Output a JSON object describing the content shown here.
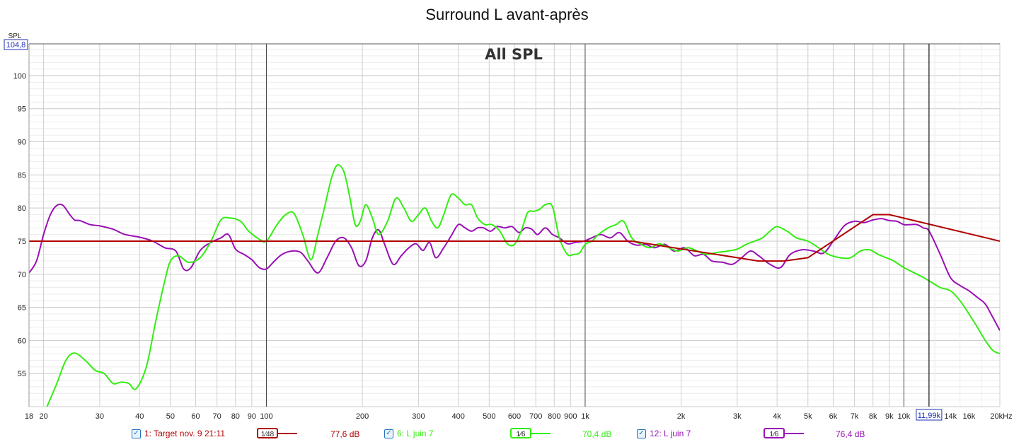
{
  "chart_data": {
    "type": "line",
    "title": "Surround L avant-après",
    "overlay_label": "All SPL",
    "ylabel": "SPL",
    "xlabel": "",
    "x_unit": "kHz",
    "x_scale": "log",
    "xlim": [
      18,
      20000
    ],
    "ylim": [
      50,
      104.8
    ],
    "y_top_readout": "104,8",
    "cursor_readout": "11,99k",
    "cursor_x": 11990,
    "y_ticks": [
      55,
      60,
      65,
      70,
      75,
      80,
      85,
      90,
      95,
      100
    ],
    "x_ticks": [
      {
        "v": 18,
        "label": "18"
      },
      {
        "v": 20,
        "label": "20"
      },
      {
        "v": 30,
        "label": "30"
      },
      {
        "v": 40,
        "label": "40"
      },
      {
        "v": 50,
        "label": "50"
      },
      {
        "v": 60,
        "label": "60"
      },
      {
        "v": 70,
        "label": "70"
      },
      {
        "v": 80,
        "label": "80"
      },
      {
        "v": 90,
        "label": "90"
      },
      {
        "v": 100,
        "label": "100"
      },
      {
        "v": 200,
        "label": "200"
      },
      {
        "v": 300,
        "label": "300"
      },
      {
        "v": 400,
        "label": "400"
      },
      {
        "v": 500,
        "label": "500"
      },
      {
        "v": 600,
        "label": "600"
      },
      {
        "v": 700,
        "label": "700"
      },
      {
        "v": 800,
        "label": "800"
      },
      {
        "v": 900,
        "label": "900"
      },
      {
        "v": 1000,
        "label": "1k"
      },
      {
        "v": 2000,
        "label": "2k"
      },
      {
        "v": 3000,
        "label": "3k"
      },
      {
        "v": 4000,
        "label": "4k"
      },
      {
        "v": 5000,
        "label": "5k"
      },
      {
        "v": 6000,
        "label": "6k"
      },
      {
        "v": 7000,
        "label": "7k"
      },
      {
        "v": 8000,
        "label": "8k"
      },
      {
        "v": 9000,
        "label": "9k"
      },
      {
        "v": 10000,
        "label": "10k"
      },
      {
        "v": 14000,
        "label": "14k"
      },
      {
        "v": 16000,
        "label": "16k"
      },
      {
        "v": 20000,
        "label": "20kHz"
      }
    ],
    "grid": true,
    "legend_position": "bottom",
    "series": [
      {
        "name": "1: Target nov. 9 21:11",
        "smoothing": "1⁄48",
        "level": "77,6 dB",
        "color": "#b00000",
        "x": [
          18,
          1400,
          3500,
          4200,
          5000,
          8000,
          9000,
          20000
        ],
        "y": [
          75,
          75,
          72,
          72,
          72.5,
          79,
          79,
          75
        ]
      },
      {
        "name": "6: L juin 7",
        "smoothing": "1⁄6",
        "level": "70,4 dB",
        "color": "#33ee11",
        "x": [
          20.5,
          22,
          23.5,
          25,
          27,
          29,
          31,
          33,
          35,
          37,
          39,
          42,
          45,
          48,
          50,
          53,
          57,
          62,
          67,
          72,
          77,
          83,
          88,
          95,
          100,
          108,
          115,
          122,
          130,
          138,
          145,
          152,
          160,
          167,
          175,
          182,
          190,
          197,
          205,
          215,
          225,
          240,
          255,
          270,
          285,
          300,
          315,
          330,
          345,
          360,
          380,
          400,
          420,
          440,
          460,
          485,
          510,
          540,
          570,
          600,
          630,
          660,
          690,
          720,
          750,
          790,
          830,
          880,
          920,
          960,
          1000,
          1050,
          1100,
          1180,
          1250,
          1320,
          1400,
          1500,
          1600,
          1700,
          1800,
          1950,
          2100,
          2250,
          2400,
          2600,
          2800,
          3000,
          3200,
          3400,
          3600,
          3800,
          4000,
          4300,
          4600,
          5000,
          5400,
          5800,
          6300,
          6800,
          7300,
          7800,
          8300,
          8800,
          9300,
          10000,
          11000,
          12000,
          13000,
          14000,
          15000,
          16000,
          17000,
          18000,
          19000,
          20000
        ],
        "y": [
          50,
          53.5,
          57,
          58.1,
          57,
          55.5,
          55,
          53.5,
          53.7,
          53.5,
          52.7,
          56,
          63,
          69,
          72,
          72.8,
          71.8,
          72.5,
          75,
          78.2,
          78.5,
          78,
          76.5,
          75.3,
          75,
          77.5,
          79,
          79.2,
          76,
          72.2,
          76,
          80,
          84.5,
          86.5,
          85.5,
          82,
          77.5,
          78,
          80.5,
          78.5,
          76,
          78,
          81.5,
          80,
          78,
          79,
          80,
          78,
          77,
          79,
          82,
          81.5,
          80.5,
          80.5,
          78.5,
          77.5,
          77.5,
          76.5,
          74.6,
          74.5,
          76.5,
          79.3,
          79.5,
          79.8,
          80.5,
          80.2,
          75.5,
          73,
          73,
          73.2,
          74.5,
          75,
          76,
          77,
          77.5,
          78,
          75.5,
          74.5,
          74,
          74.6,
          74.2,
          73.5,
          74,
          73.5,
          73,
          73.3,
          73.5,
          73.8,
          74.5,
          75,
          75.5,
          76.5,
          77.2,
          76.5,
          75.5,
          75,
          74,
          73,
          72.5,
          72.5,
          73.5,
          73.7,
          73,
          72.5,
          72,
          71,
          70,
          69,
          68,
          67.5,
          66,
          64,
          62,
          60,
          58.5,
          58
        ]
      },
      {
        "name": "12: L juin 7",
        "smoothing": "1⁄6",
        "level": "76,4 dB",
        "color": "#9a10b5",
        "x": [
          18,
          19,
          20,
          21,
          22,
          23,
          24,
          25,
          26,
          28,
          30,
          33,
          36,
          40,
          44,
          48,
          52,
          55,
          58,
          62,
          67,
          72,
          76,
          80,
          85,
          90,
          95,
          100,
          106,
          112,
          120,
          128,
          135,
          145,
          155,
          165,
          175,
          185,
          195,
          205,
          215,
          225,
          235,
          250,
          265,
          280,
          295,
          310,
          325,
          340,
          360,
          380,
          400,
          420,
          440,
          460,
          480,
          505,
          530,
          560,
          590,
          620,
          650,
          680,
          710,
          750,
          790,
          830,
          880,
          930,
          990,
          1050,
          1120,
          1200,
          1280,
          1360,
          1450,
          1550,
          1650,
          1780,
          1900,
          2050,
          2200,
          2350,
          2500,
          2700,
          2900,
          3100,
          3300,
          3500,
          3800,
          4100,
          4400,
          4800,
          5200,
          5600,
          6000,
          6500,
          7000,
          7500,
          8000,
          8500,
          9000,
          9500,
          10000,
          10500,
          11000,
          11500,
          12000,
          13000,
          14000,
          15000,
          16000,
          17000,
          18000,
          19000,
          20000
        ],
        "y": [
          70.2,
          72,
          76,
          79,
          80.4,
          80.4,
          79.2,
          78.2,
          78.1,
          77.5,
          77.3,
          76.8,
          76,
          75.6,
          75,
          74,
          73.5,
          70.8,
          71,
          73.6,
          74.8,
          75.5,
          76,
          73.8,
          73,
          72.2,
          71,
          70.8,
          72,
          73,
          73.5,
          73.3,
          72,
          70.2,
          72.5,
          75,
          75.5,
          74,
          71.3,
          72,
          75.5,
          76.7,
          74.5,
          71.5,
          72.8,
          74,
          74.6,
          73.6,
          74.8,
          72.5,
          74,
          75.8,
          77.5,
          77,
          76.5,
          77,
          77,
          76.5,
          77.2,
          77,
          77.2,
          76.3,
          77,
          76.8,
          76,
          77,
          76,
          75.5,
          74.6,
          74.8,
          75,
          75.5,
          76,
          75.5,
          76.3,
          75,
          74.4,
          74.5,
          74,
          74.5,
          73.5,
          74,
          72.8,
          73,
          72,
          71.8,
          71.5,
          72.5,
          73.5,
          72.8,
          71.5,
          71,
          73,
          73.7,
          73.5,
          73.2,
          75,
          77.3,
          78,
          77.8,
          78.2,
          78.4,
          78.1,
          78,
          77.5,
          77.5,
          77.5,
          77,
          76.5,
          73,
          69.5,
          68.3,
          67.5,
          66.5,
          65.5,
          63.5,
          61.5
        ]
      }
    ]
  }
}
